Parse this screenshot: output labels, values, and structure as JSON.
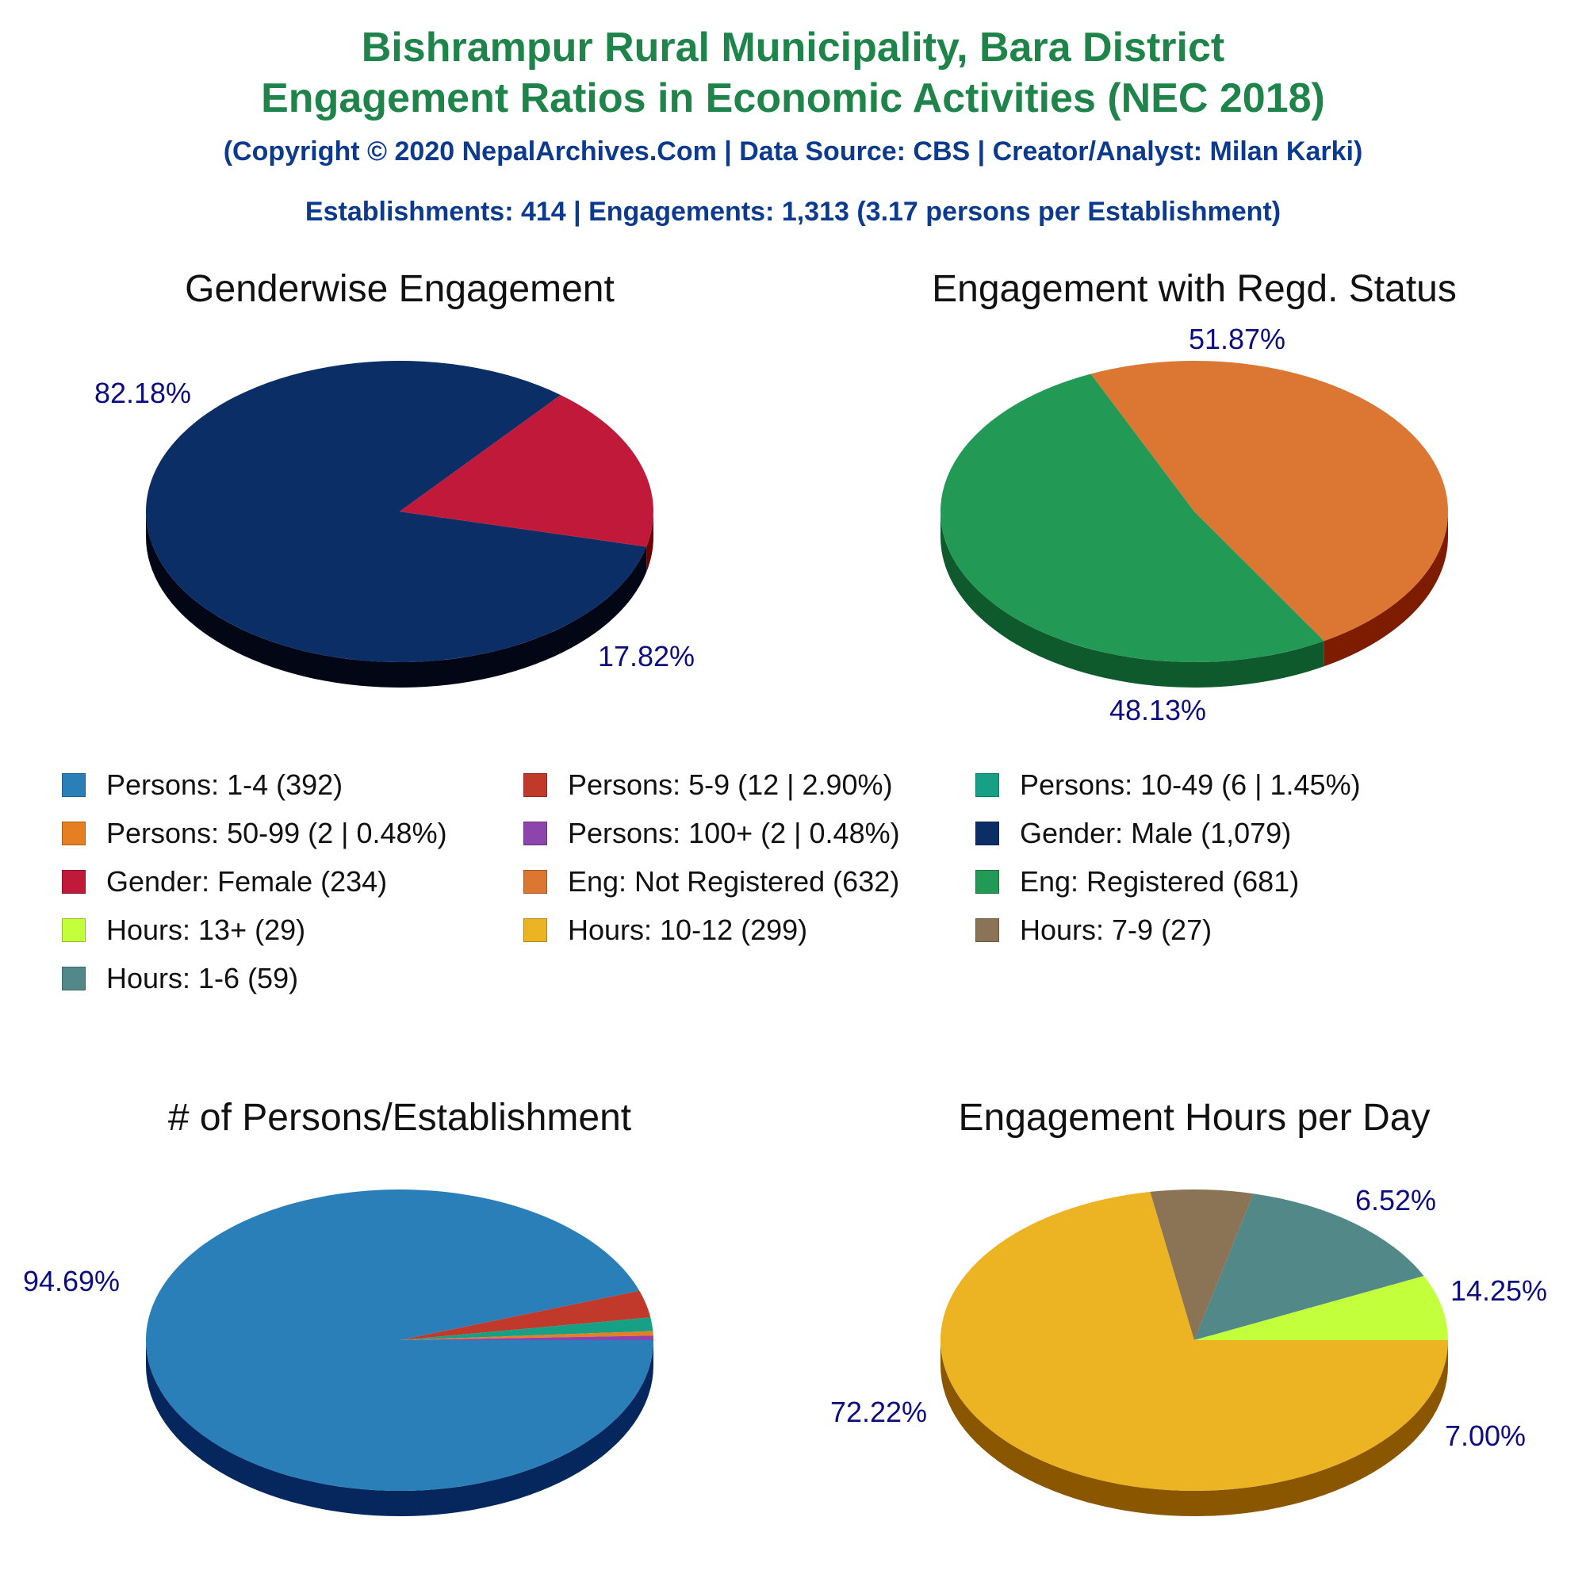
{
  "header": {
    "title_line1": "Bishrampur Rural Municipality, Bara District",
    "title_line2": "Engagement Ratios in Economic Activities (NEC 2018)",
    "copyright": "(Copyright © 2020 NepalArchives.Com | Data Source: CBS | Creator/Analyst: Milan Karki)",
    "summary": "Establishments: 414 | Engagements: 1,313 (3.17 persons per Establishment)"
  },
  "legend": [
    {
      "label": "Persons: 1-4 (392)",
      "color": "#2a7fb8"
    },
    {
      "label": "Persons: 5-9 (12 | 2.90%)",
      "color": "#c0392b"
    },
    {
      "label": "Persons: 10-49 (6 | 1.45%)",
      "color": "#16a085"
    },
    {
      "label": "Persons: 50-99 (2 | 0.48%)",
      "color": "#e67e22"
    },
    {
      "label": "Persons: 100+ (2 | 0.48%)",
      "color": "#8e44ad"
    },
    {
      "label": "Gender: Male (1,079)",
      "color": "#0b2e66"
    },
    {
      "label": "Gender: Female (234)",
      "color": "#c0193a"
    },
    {
      "label": "Eng: Not Registered (632)",
      "color": "#dc7633"
    },
    {
      "label": "Eng: Registered (681)",
      "color": "#229954"
    },
    {
      "label": "Hours: 13+ (29)",
      "color": "#c4ff3c"
    },
    {
      "label": "Hours: 10-12 (299)",
      "color": "#ecb322"
    },
    {
      "label": "Hours: 7-9 (27)",
      "color": "#8b7355"
    },
    {
      "label": "Hours: 1-6 (59)",
      "color": "#528888"
    }
  ],
  "chart_data": [
    {
      "type": "pie",
      "title": "Genderwise Engagement",
      "slices": [
        {
          "name": "Gender: Male",
          "value": 1079,
          "label": "82.18%",
          "color": "#0b2e66",
          "side": "#030615"
        },
        {
          "name": "Gender: Female",
          "value": 234,
          "label": "17.82%",
          "color": "#c0193a",
          "side": "#6e0000"
        }
      ]
    },
    {
      "type": "pie",
      "title": "Engagement with Regd. Status",
      "slices": [
        {
          "name": "Eng: Registered",
          "value": 681,
          "label": "51.87%",
          "color": "#229954",
          "side": "#0e5a2c"
        },
        {
          "name": "Eng: Not Registered",
          "value": 632,
          "label": "48.13%",
          "color": "#dc7633",
          "side": "#7d1c00"
        }
      ]
    },
    {
      "type": "pie",
      "title": "# of Persons/Establishment",
      "slices": [
        {
          "name": "Persons: 1-4",
          "value": 392,
          "label": "94.69%",
          "color": "#2a7fb8",
          "side": "#06275e"
        },
        {
          "name": "Persons: 5-9",
          "value": 12,
          "label": "",
          "color": "#c0392b",
          "side": "#6e0000"
        },
        {
          "name": "Persons: 10-49",
          "value": 6,
          "label": "",
          "color": "#16a085",
          "side": "#055a48"
        },
        {
          "name": "Persons: 50-99",
          "value": 2,
          "label": "",
          "color": "#e67e22",
          "side": "#7a3a00"
        },
        {
          "name": "Persons: 100+",
          "value": 2,
          "label": "",
          "color": "#8e44ad",
          "side": "#4a1060"
        }
      ]
    },
    {
      "type": "pie",
      "title": "Engagement Hours per Day",
      "slices": [
        {
          "name": "Hours: 10-12",
          "value": 299,
          "label": "72.22%",
          "color": "#ecb322",
          "side": "#8a5600"
        },
        {
          "name": "Hours: 7-9",
          "value": 27,
          "label": "6.52%",
          "color": "#8b7355",
          "side": "#4a3a25"
        },
        {
          "name": "Hours: 1-6",
          "value": 59,
          "label": "14.25%",
          "color": "#528888",
          "side": "#1c4444"
        },
        {
          "name": "Hours: 13+",
          "value": 29,
          "label": "7.00%",
          "color": "#c4ff3c",
          "side": "#6aa000"
        }
      ]
    }
  ],
  "colors": {
    "percent_label": "#0d0d80",
    "chart_title": "#111111"
  }
}
